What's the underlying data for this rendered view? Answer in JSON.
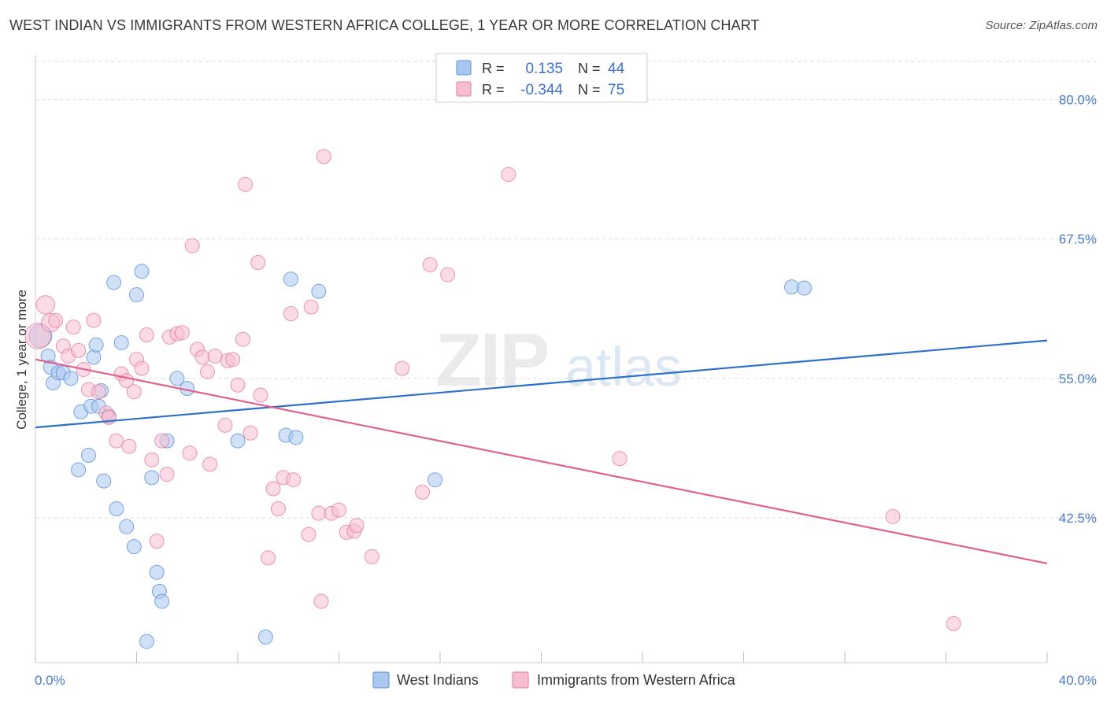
{
  "header": {
    "title": "WEST INDIAN VS IMMIGRANTS FROM WESTERN AFRICA COLLEGE, 1 YEAR OR MORE CORRELATION CHART",
    "source": "Source: ZipAtlas.com"
  },
  "watermark": {
    "zip": "ZIP",
    "atlas": "atlas"
  },
  "colors": {
    "blue_fill": "#a9c8f0",
    "blue_stroke": "#5b8fd6",
    "blue_line": "#2f6fcc",
    "pink_fill": "#f7bdd0",
    "pink_stroke": "#e57a9f",
    "pink_line": "#e0608f",
    "grid": "#dddddd",
    "tick_text": "#4a7bd0"
  },
  "legend": {
    "rows": [
      {
        "r_label": "R =",
        "r_value": "0.135",
        "n_label": "N =",
        "n_value": "44"
      },
      {
        "r_label": "R =",
        "r_value": "-0.344",
        "n_label": "N =",
        "n_value": "75"
      }
    ]
  },
  "bottom_legend": {
    "blue": "West Indians",
    "pink": "Immigrants from Western Africa"
  },
  "chart_data": {
    "type": "scatter",
    "title": "WEST INDIAN VS IMMIGRANTS FROM WESTERN AFRICA COLLEGE, 1 YEAR OR MORE CORRELATION CHART",
    "xlabel": "",
    "ylabel": "College, 1 year or more",
    "xlim": [
      0,
      40
    ],
    "ylim": [
      29.5,
      84
    ],
    "x_tick_labels": [
      "0.0%",
      "40.0%"
    ],
    "y_ticks": [
      42.5,
      55.0,
      67.5,
      80.0
    ],
    "y_tick_labels": [
      "42.5%",
      "55.0%",
      "67.5%",
      "80.0%"
    ],
    "grid": true,
    "legend_position": "top-center",
    "series": [
      {
        "name": "West Indians",
        "color": "blue",
        "R": 0.135,
        "N": 44,
        "trend": {
          "x": [
            0,
            40
          ],
          "y": [
            50.6,
            58.4
          ]
        },
        "points": [
          [
            0.2,
            58.8,
            16
          ],
          [
            0.5,
            57.0,
            10
          ],
          [
            0.6,
            56.0,
            10
          ],
          [
            0.7,
            54.6,
            10
          ],
          [
            0.9,
            55.5,
            10
          ],
          [
            1.1,
            55.5,
            10
          ],
          [
            1.4,
            55.0,
            10
          ],
          [
            1.7,
            46.8,
            10
          ],
          [
            1.8,
            52.0,
            10
          ],
          [
            2.1,
            48.1,
            10
          ],
          [
            2.2,
            52.5,
            10
          ],
          [
            2.3,
            56.9,
            10
          ],
          [
            2.4,
            58.0,
            10
          ],
          [
            2.5,
            52.5,
            10
          ],
          [
            2.6,
            53.9,
            10
          ],
          [
            2.7,
            45.8,
            10
          ],
          [
            2.9,
            51.6,
            10
          ],
          [
            3.1,
            63.6,
            10
          ],
          [
            3.2,
            43.3,
            10
          ],
          [
            3.4,
            58.2,
            10
          ],
          [
            3.6,
            41.7,
            10
          ],
          [
            3.9,
            39.9,
            10
          ],
          [
            4.0,
            62.5,
            10
          ],
          [
            4.2,
            64.6,
            10
          ],
          [
            4.4,
            31.4,
            10
          ],
          [
            4.6,
            46.1,
            10
          ],
          [
            4.8,
            37.6,
            10
          ],
          [
            4.9,
            35.9,
            10
          ],
          [
            5.0,
            35.0,
            10
          ],
          [
            5.2,
            49.4,
            10
          ],
          [
            5.6,
            55.0,
            10
          ],
          [
            6.0,
            54.1,
            10
          ],
          [
            8.0,
            49.4,
            10
          ],
          [
            9.1,
            31.8,
            10
          ],
          [
            9.9,
            49.9,
            10
          ],
          [
            10.1,
            63.9,
            10
          ],
          [
            10.3,
            49.7,
            10
          ],
          [
            11.2,
            62.8,
            10
          ],
          [
            15.8,
            45.9,
            10
          ],
          [
            29.9,
            63.2,
            10
          ],
          [
            30.4,
            63.1,
            10
          ]
        ]
      },
      {
        "name": "Immigrants from Western Africa",
        "color": "pink",
        "R": -0.344,
        "N": 75,
        "trend": {
          "x": [
            0,
            40
          ],
          "y": [
            56.7,
            38.4
          ]
        },
        "points": [
          [
            0.1,
            58.8,
            18
          ],
          [
            0.4,
            61.6,
            13
          ],
          [
            0.6,
            60.0,
            13
          ],
          [
            0.8,
            60.2,
            10
          ],
          [
            1.1,
            57.9,
            10
          ],
          [
            1.3,
            57.0,
            10
          ],
          [
            1.5,
            59.6,
            10
          ],
          [
            1.7,
            57.5,
            10
          ],
          [
            1.9,
            55.8,
            10
          ],
          [
            2.1,
            54.0,
            10
          ],
          [
            2.3,
            60.2,
            10
          ],
          [
            2.5,
            53.8,
            10
          ],
          [
            2.8,
            51.9,
            10
          ],
          [
            2.9,
            51.5,
            10
          ],
          [
            3.2,
            49.4,
            10
          ],
          [
            3.4,
            55.4,
            10
          ],
          [
            3.6,
            54.8,
            10
          ],
          [
            3.7,
            48.9,
            10
          ],
          [
            3.9,
            53.8,
            10
          ],
          [
            4.0,
            56.7,
            10
          ],
          [
            4.2,
            55.9,
            10
          ],
          [
            4.4,
            58.9,
            10
          ],
          [
            4.6,
            47.7,
            10
          ],
          [
            4.8,
            40.4,
            10
          ],
          [
            5.0,
            49.4,
            10
          ],
          [
            5.2,
            46.4,
            10
          ],
          [
            5.3,
            58.7,
            10
          ],
          [
            5.6,
            59.0,
            10
          ],
          [
            5.8,
            59.1,
            10
          ],
          [
            6.1,
            48.3,
            10
          ],
          [
            6.2,
            66.9,
            10
          ],
          [
            6.4,
            57.6,
            10
          ],
          [
            6.6,
            56.9,
            10
          ],
          [
            6.8,
            55.6,
            10
          ],
          [
            6.9,
            47.3,
            10
          ],
          [
            7.1,
            57.0,
            10
          ],
          [
            7.5,
            50.8,
            10
          ],
          [
            7.6,
            56.6,
            10
          ],
          [
            7.8,
            56.7,
            10
          ],
          [
            8.0,
            54.4,
            10
          ],
          [
            8.2,
            58.5,
            10
          ],
          [
            8.3,
            72.4,
            10
          ],
          [
            8.5,
            50.1,
            10
          ],
          [
            8.8,
            65.4,
            10
          ],
          [
            8.9,
            53.5,
            10
          ],
          [
            9.2,
            38.9,
            10
          ],
          [
            9.4,
            45.1,
            10
          ],
          [
            9.6,
            43.3,
            10
          ],
          [
            9.8,
            46.1,
            10
          ],
          [
            10.1,
            60.8,
            10
          ],
          [
            10.2,
            45.9,
            10
          ],
          [
            10.8,
            41.0,
            10
          ],
          [
            10.9,
            61.4,
            10
          ],
          [
            11.2,
            42.9,
            10
          ],
          [
            11.3,
            35.0,
            10
          ],
          [
            11.4,
            74.9,
            10
          ],
          [
            11.7,
            42.9,
            10
          ],
          [
            12.0,
            43.2,
            10
          ],
          [
            12.3,
            41.2,
            10
          ],
          [
            12.6,
            41.3,
            10
          ],
          [
            12.7,
            41.8,
            10
          ],
          [
            13.3,
            39.0,
            10
          ],
          [
            14.5,
            55.9,
            10
          ],
          [
            15.3,
            44.8,
            10
          ],
          [
            15.6,
            65.2,
            10
          ],
          [
            16.3,
            64.3,
            10
          ],
          [
            18.7,
            73.3,
            10
          ],
          [
            23.1,
            47.8,
            10
          ],
          [
            33.9,
            42.6,
            10
          ],
          [
            36.3,
            33.0,
            10
          ]
        ]
      }
    ]
  }
}
